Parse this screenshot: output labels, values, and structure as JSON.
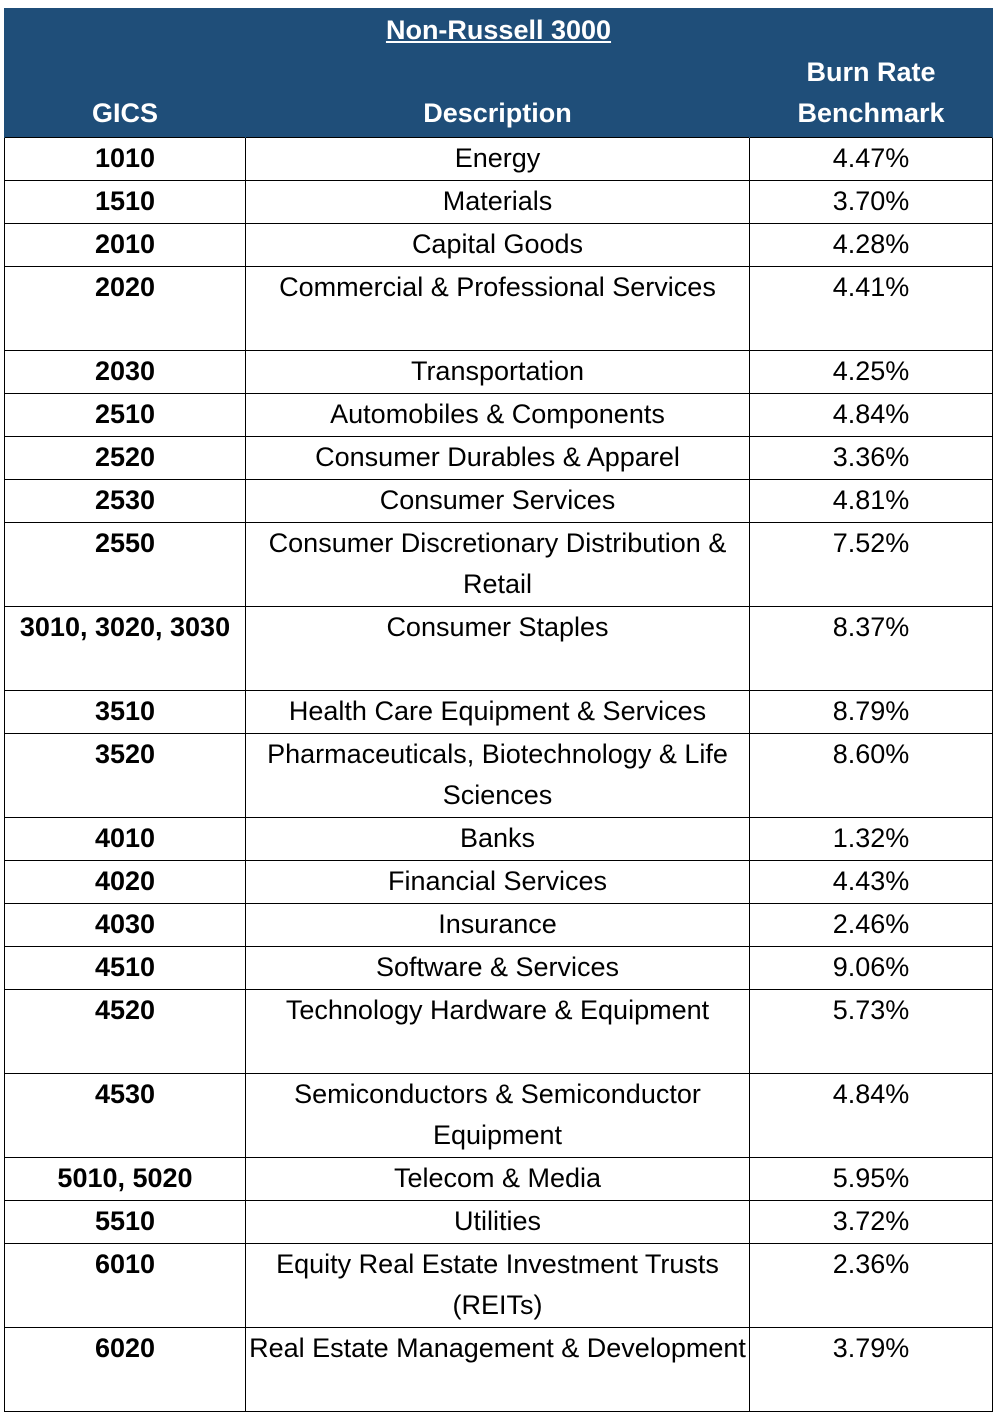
{
  "table": {
    "title": "Non-Russell 3000",
    "headers": {
      "gics": "GICS",
      "description": "Description",
      "benchmark_line1": "Burn Rate",
      "benchmark_line2": "Benchmark"
    },
    "colors": {
      "header_bg": "#1f4e79",
      "header_text": "#ffffff"
    },
    "rows": [
      {
        "gics": "1010",
        "description": "Energy",
        "benchmark": "4.47%"
      },
      {
        "gics": "1510",
        "description": "Materials",
        "benchmark": "3.70%"
      },
      {
        "gics": "2010",
        "description": "Capital Goods",
        "benchmark": "4.28%"
      },
      {
        "gics": "2020",
        "description": "Commercial & Professional Services",
        "benchmark": "4.41%"
      },
      {
        "gics": "2030",
        "description": "Transportation",
        "benchmark": "4.25%"
      },
      {
        "gics": "2510",
        "description": "Automobiles & Components",
        "benchmark": "4.84%"
      },
      {
        "gics": "2520",
        "description": "Consumer Durables & Apparel",
        "benchmark": "3.36%"
      },
      {
        "gics": "2530",
        "description": "Consumer Services",
        "benchmark": "4.81%"
      },
      {
        "gics": "2550",
        "description": "Consumer Discretionary Distribution & Retail",
        "benchmark": "7.52%"
      },
      {
        "gics": "3010, 3020, 3030",
        "description": "Consumer Staples",
        "benchmark": "8.37%"
      },
      {
        "gics": "3510",
        "description": "Health Care Equipment & Services",
        "benchmark": "8.79%"
      },
      {
        "gics": "3520",
        "description": "Pharmaceuticals, Biotechnology & Life Sciences",
        "benchmark": "8.60%"
      },
      {
        "gics": "4010",
        "description": "Banks",
        "benchmark": "1.32%"
      },
      {
        "gics": "4020",
        "description": "Financial Services",
        "benchmark": "4.43%"
      },
      {
        "gics": "4030",
        "description": "Insurance",
        "benchmark": "2.46%"
      },
      {
        "gics": "4510",
        "description": "Software & Services",
        "benchmark": "9.06%"
      },
      {
        "gics": "4520",
        "description": "Technology Hardware & Equipment",
        "benchmark": "5.73%"
      },
      {
        "gics": "4530",
        "description": "Semiconductors & Semiconductor Equipment",
        "benchmark": "4.84%"
      },
      {
        "gics": "5010, 5020",
        "description": "Telecom & Media",
        "benchmark": "5.95%"
      },
      {
        "gics": "5510",
        "description": "Utilities",
        "benchmark": "3.72%"
      },
      {
        "gics": "6010",
        "description": "Equity Real Estate Investment Trusts (REITs)",
        "benchmark": "2.36%"
      },
      {
        "gics": "6020",
        "description": "Real Estate Management & Development",
        "benchmark": "3.79%"
      }
    ]
  }
}
